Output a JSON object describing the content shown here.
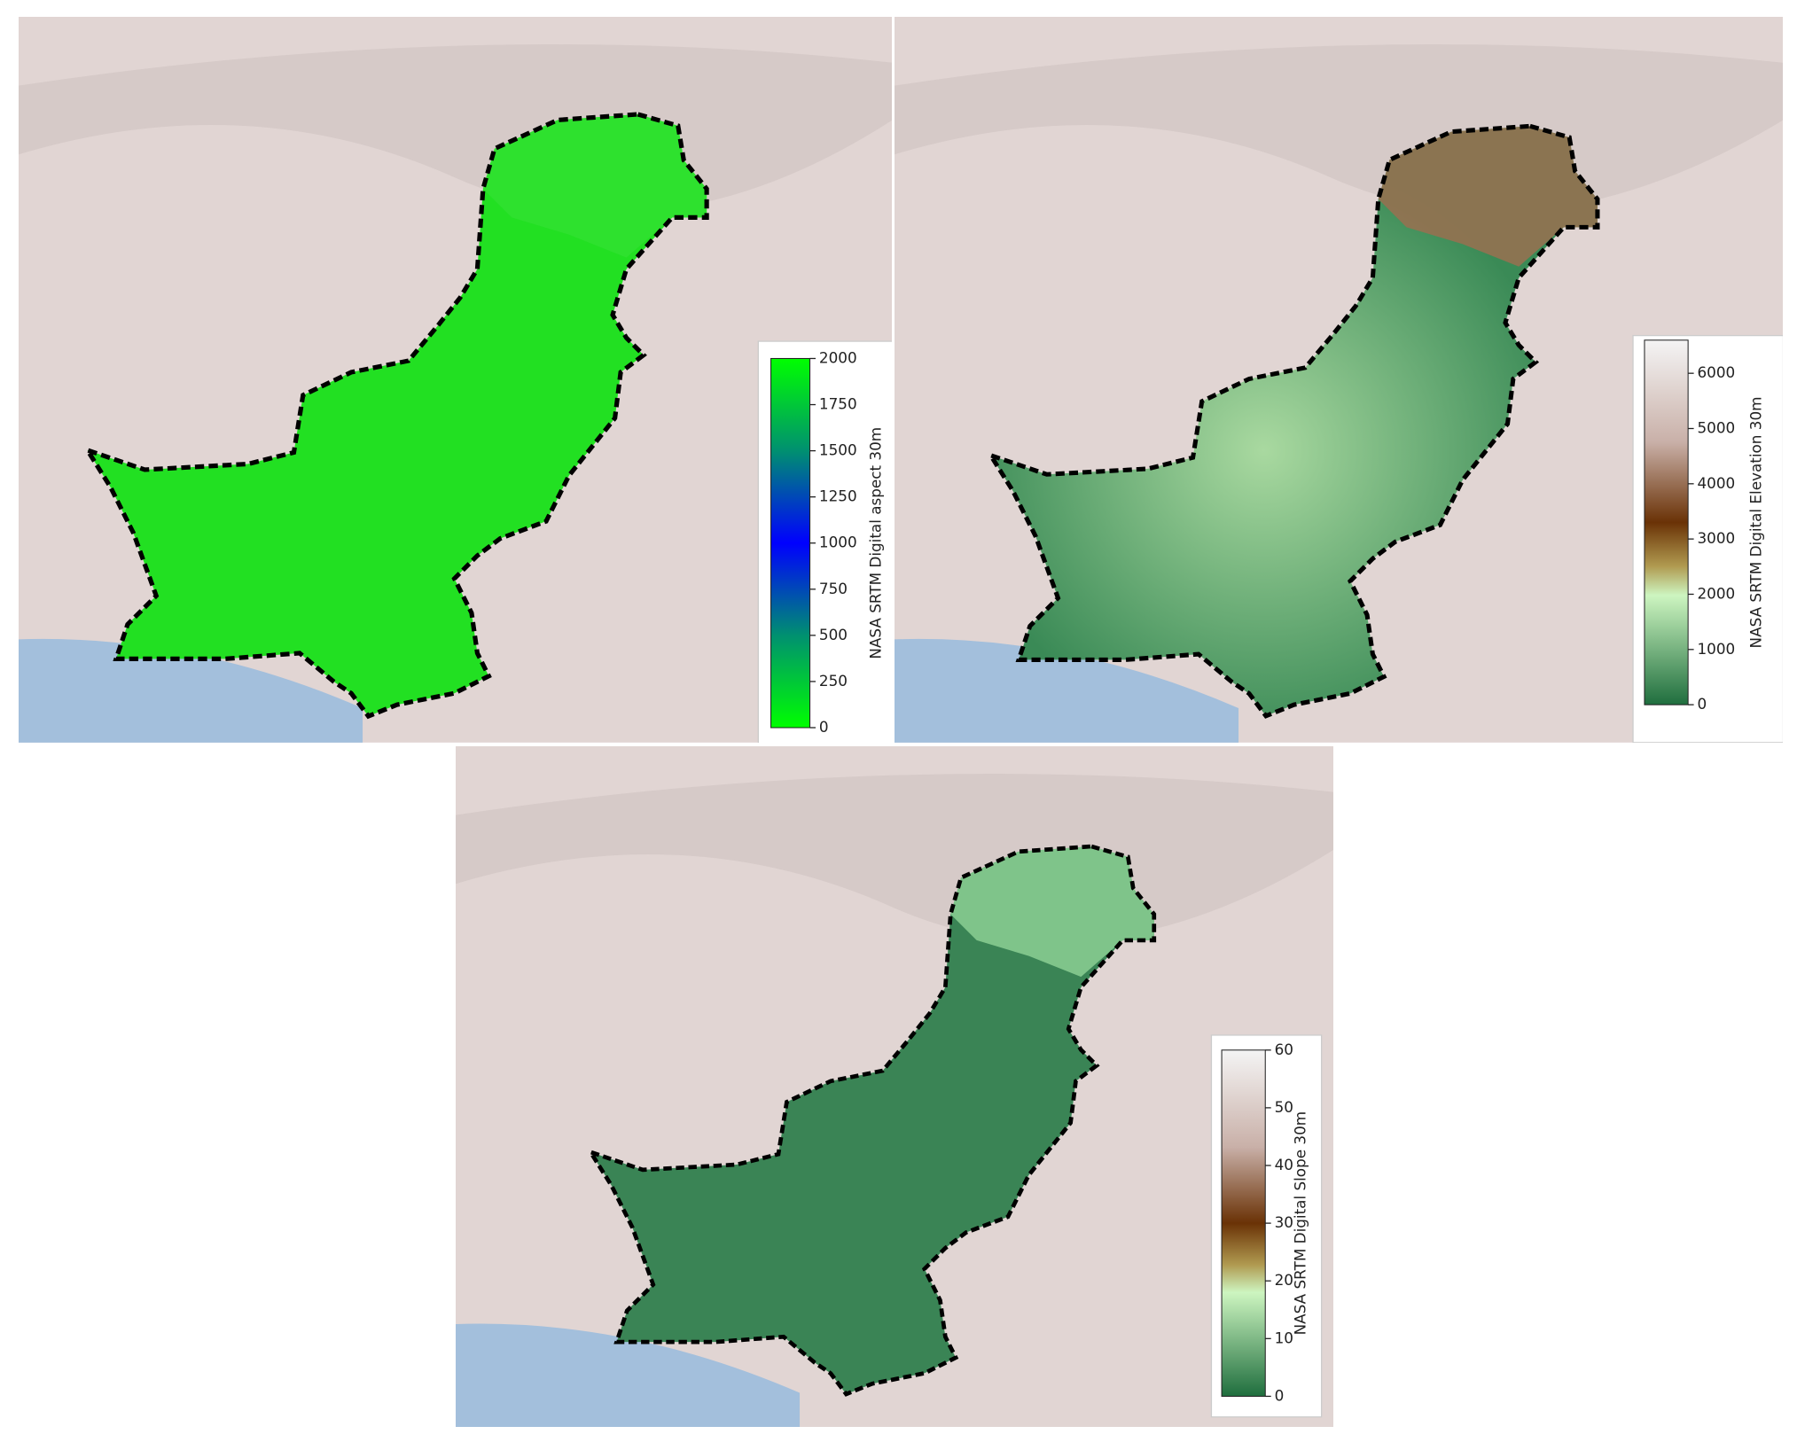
{
  "maps": [
    {
      "colorbar": {
        "label": "NASA SRTM Digital aspect 30m",
        "range": [
          0,
          2000
        ],
        "ticks": [
          0,
          250,
          500,
          750,
          1000,
          1250,
          1500,
          1750,
          2000
        ]
      }
    },
    {
      "colorbar": {
        "label": "NASA SRTM Digital Elevation 30m",
        "range": [
          0,
          6600
        ],
        "ticks": [
          0,
          1000,
          2000,
          3000,
          4000,
          5000,
          6000
        ]
      }
    },
    {
      "colorbar": {
        "label": "NASA SRTM Digital Slope 30m",
        "range": [
          0,
          60
        ],
        "ticks": [
          0,
          10,
          20,
          30,
          40,
          50,
          60
        ]
      }
    }
  ]
}
